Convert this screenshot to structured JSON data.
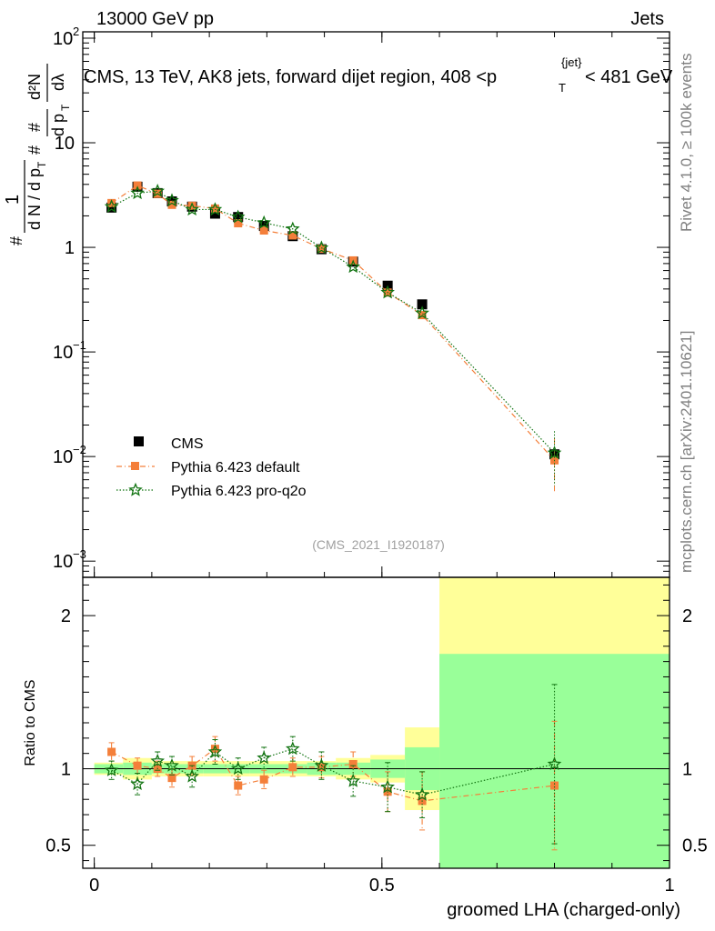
{
  "header": {
    "left": "13000 GeV pp",
    "right": "Jets",
    "title": "CMS, 13 TeV, AK8 jets, forward dijet region, 408 <p",
    "title_sup": "{jet}",
    "title_sub": "T",
    "title_end": "< 481 GeV"
  },
  "side": {
    "rivet": "Rivet 4.1.0, ≥ 100k events",
    "mcplots": "mcplots.cern.ch [arXiv:2401.10621]"
  },
  "watermark": "(CMS_2021_I1920187)",
  "ratio_ylabel": "Ratio to CMS",
  "xlabel": "groomed LHA (charged-only)",
  "ylabel": {
    "n1": "#",
    "one": "1",
    "dN": "d N / d p",
    "T1": "T",
    "n2": "#",
    "dpT": "d p",
    "T2": "T",
    "n3": "#",
    "d2N": "d²N",
    "dl": "dλ"
  },
  "legend": [
    {
      "label": "CMS",
      "color": "#000000",
      "marker": "square"
    },
    {
      "label": "Pythia 6.423 default",
      "color": "#f47f3a",
      "marker": "square-line"
    },
    {
      "label": "Pythia 6.423 pro-q2o",
      "color": "#117311",
      "marker": "star"
    }
  ],
  "chart_data": {
    "type": "scatter",
    "xlabel": "groomed LHA (charged-only)",
    "xlim": [
      -0.02,
      1.0
    ],
    "xticks": [
      {
        "v": 0,
        "t": "0"
      },
      {
        "v": 0.5,
        "t": "0.5"
      },
      {
        "v": 1,
        "t": "1"
      }
    ],
    "main": {
      "yscale": "log",
      "ylim": [
        0.0007,
        115
      ],
      "yticks": [
        {
          "v": 0.001,
          "b": "10",
          "e": "−3"
        },
        {
          "v": 0.01,
          "b": "10",
          "e": "−2"
        },
        {
          "v": 0.1,
          "b": "10",
          "e": "−1"
        },
        {
          "v": 1,
          "b": "1",
          "e": ""
        },
        {
          "v": 10,
          "b": "10",
          "e": ""
        },
        {
          "v": 100,
          "b": "10",
          "e": "2"
        }
      ]
    },
    "ratio": {
      "ylim": [
        0.35,
        2.25
      ],
      "yticks": [
        0.5,
        1,
        2
      ],
      "ytick_labels": [
        "0.5",
        "1",
        "2"
      ]
    },
    "bins": [
      0,
      0.05,
      0.1,
      0.12,
      0.15,
      0.19,
      0.23,
      0.27,
      0.32,
      0.37,
      0.42,
      0.48,
      0.54,
      0.6,
      1.0
    ],
    "series": [
      {
        "name": "CMS",
        "color": "#000000",
        "x": [
          0.03,
          0.075,
          0.11,
          0.135,
          0.17,
          0.21,
          0.25,
          0.295,
          0.345,
          0.395,
          0.45,
          0.51,
          0.57,
          0.8
        ],
        "y": [
          2.4,
          3.8,
          3.3,
          2.75,
          2.45,
          2.1,
          1.95,
          1.6,
          1.28,
          0.96,
          0.73,
          0.43,
          0.285,
          0.0105
        ]
      },
      {
        "name": "Pythia 6.423 default",
        "color": "#f47f3a",
        "x": [
          0.03,
          0.075,
          0.11,
          0.135,
          0.17,
          0.21,
          0.25,
          0.295,
          0.345,
          0.395,
          0.45,
          0.51,
          0.57,
          0.8
        ],
        "y": [
          2.65,
          3.9,
          3.25,
          2.55,
          2.5,
          2.35,
          1.7,
          1.45,
          1.3,
          0.97,
          0.75,
          0.37,
          0.225,
          0.0092
        ],
        "ratio": [
          1.11,
          1.02,
          1.0,
          0.94,
          1.02,
          1.13,
          0.89,
          0.93,
          1.01,
          1.01,
          1.03,
          0.85,
          0.79,
          0.89
        ],
        "ratio_err": [
          0.06,
          0.05,
          0.05,
          0.06,
          0.06,
          0.08,
          0.06,
          0.06,
          0.06,
          0.07,
          0.08,
          0.13,
          0.19,
          0.42
        ],
        "style": "dashdot"
      },
      {
        "name": "Pythia 6.423 pro-q2o",
        "color": "#117311",
        "x": [
          0.03,
          0.075,
          0.11,
          0.135,
          0.17,
          0.21,
          0.25,
          0.295,
          0.345,
          0.395,
          0.45,
          0.51,
          0.57,
          0.8
        ],
        "y": [
          2.45,
          3.3,
          3.45,
          2.8,
          2.3,
          2.3,
          1.95,
          1.72,
          1.5,
          0.99,
          0.65,
          0.37,
          0.235,
          0.0108
        ],
        "ratio": [
          0.99,
          0.9,
          1.05,
          1.02,
          0.95,
          1.11,
          1.0,
          1.07,
          1.13,
          1.02,
          0.92,
          0.88,
          0.83,
          1.03
        ],
        "ratio_err": [
          0.06,
          0.07,
          0.06,
          0.06,
          0.07,
          0.08,
          0.07,
          0.07,
          0.08,
          0.09,
          0.1,
          0.16,
          0.15,
          0.52
        ],
        "style": "dotted"
      }
    ],
    "bands": {
      "yellow_halfwidth": [
        0.04,
        0.07,
        0.05,
        0.05,
        0.05,
        0.05,
        0.05,
        0.05,
        0.05,
        0.05,
        0.07,
        0.09,
        0.27,
        1.3
      ],
      "green_halfwidth": [
        0.03,
        0.04,
        0.03,
        0.03,
        0.03,
        0.03,
        0.03,
        0.03,
        0.03,
        0.04,
        0.04,
        0.06,
        0.14,
        0.75
      ],
      "yellow_color": "#ffff99",
      "green_color": "#99ff99"
    }
  }
}
